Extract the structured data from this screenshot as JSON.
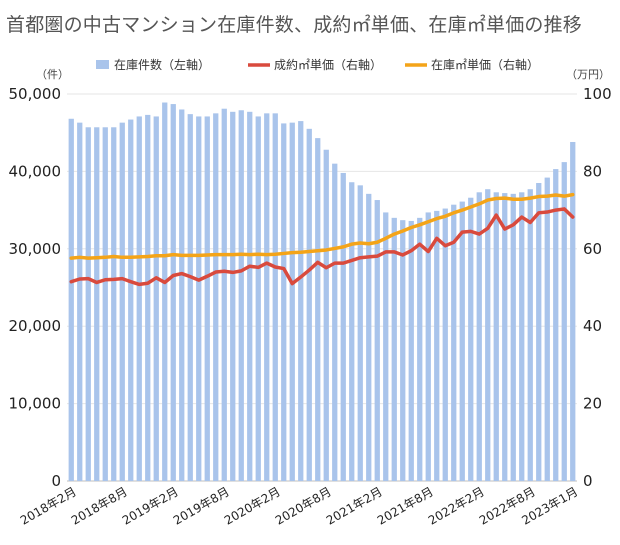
{
  "title": "首都圏の中古マンション在庫件数、成約㎡単価、在庫㎡単価の推移",
  "chart_data": {
    "type": "bar",
    "title": "首都圏の中古マンション在庫件数、成約㎡単価、在庫㎡単価の推移",
    "y_left_unit": "（件）",
    "y_right_unit": "（万円）",
    "y_left_lim": [
      0,
      50000
    ],
    "y_right_lim": [
      0,
      100
    ],
    "y_left_ticks": [
      "0",
      "10,000",
      "20,000",
      "30,000",
      "40,000",
      "50,000"
    ],
    "y_right_ticks": [
      "0",
      "20",
      "40",
      "60",
      "80",
      "100"
    ],
    "x_tick_labels": [
      "2018年2月",
      "2018年8月",
      "2019年2月",
      "2019年8月",
      "2020年2月",
      "2020年8月",
      "2021年2月",
      "2021年8月",
      "2022年2月",
      "2022年8月",
      "2023年1月"
    ],
    "x_tick_indices": [
      0,
      6,
      12,
      18,
      24,
      30,
      36,
      42,
      48,
      54,
      59
    ],
    "grid": "horizontal",
    "legend_position": "top",
    "series": [
      {
        "name": "在庫件数（左軸）",
        "type": "bar",
        "axis": "left",
        "color": "#a9c4eb",
        "values": [
          46800,
          46300,
          45700,
          45700,
          45700,
          45700,
          46300,
          46700,
          47100,
          47300,
          47100,
          48900,
          48700,
          48000,
          47400,
          47100,
          47100,
          47500,
          48100,
          47700,
          47900,
          47700,
          47100,
          47500,
          47500,
          46200,
          46300,
          46500,
          45500,
          44300,
          42800,
          41000,
          39800,
          38600,
          38200,
          37100,
          36300,
          34700,
          34000,
          33700,
          33600,
          34000,
          34700,
          34900,
          35200,
          35700,
          36100,
          36600,
          37300,
          37700,
          37300,
          37200,
          37100,
          37300,
          37700,
          38500,
          39200,
          40300,
          41200,
          43800
        ]
      },
      {
        "name": "成約㎡単価（右軸）",
        "type": "line",
        "axis": "right",
        "color": "#d94a3d",
        "values": [
          51.5,
          52.2,
          52.3,
          51.3,
          52,
          52.1,
          52.3,
          51.5,
          50.8,
          51.1,
          52.5,
          51.3,
          53.1,
          53.6,
          52.8,
          51.9,
          52.9,
          54,
          54.2,
          53.9,
          54.3,
          55.5,
          55.2,
          56.3,
          55.3,
          54.9,
          51,
          52.7,
          54.5,
          56.5,
          55.1,
          56.3,
          56.3,
          57,
          57.7,
          57.9,
          58.1,
          59.2,
          59.2,
          58.4,
          59.5,
          61.2,
          59.3,
          62.7,
          60.8,
          61.7,
          64.3,
          64.5,
          63.8,
          65.3,
          68.7,
          65.1,
          66.2,
          68.2,
          66.8,
          69.3,
          69.5,
          70,
          70.3,
          68.2
        ]
      },
      {
        "name": "在庫㎡単価（右軸）",
        "type": "line",
        "axis": "right",
        "color": "#f4a418",
        "values": [
          57.6,
          57.8,
          57.6,
          57.7,
          57.8,
          58,
          57.8,
          57.8,
          57.9,
          58,
          58.2,
          58.2,
          58.5,
          58.3,
          58.3,
          58.3,
          58.4,
          58.5,
          58.5,
          58.5,
          58.6,
          58.5,
          58.6,
          58.5,
          58.6,
          58.8,
          59,
          59.1,
          59.3,
          59.5,
          59.7,
          60.1,
          60.5,
          61.2,
          61.5,
          61.3,
          61.7,
          62.7,
          63.8,
          64.6,
          65.5,
          66.2,
          67,
          67.8,
          68.4,
          69.3,
          70,
          70.8,
          71.6,
          72.6,
          73,
          73.1,
          72.8,
          72.8,
          73.1,
          73.5,
          73.6,
          73.9,
          73.6,
          74
        ]
      }
    ]
  }
}
